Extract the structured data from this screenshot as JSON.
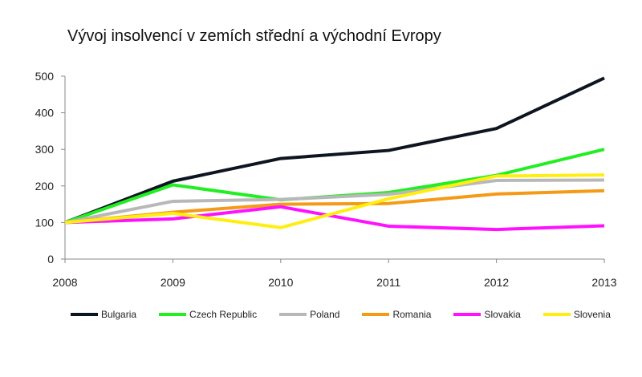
{
  "chart_data": {
    "type": "line",
    "title": "Vývoj insolvencí v zemích střední a východní Evropy",
    "xlabel": "",
    "ylabel": "",
    "x": [
      "2008",
      "2009",
      "2010",
      "2011",
      "2012",
      "2013"
    ],
    "ylim": [
      0,
      500
    ],
    "yticks": [
      "0",
      "100",
      "200",
      "300",
      "400",
      "500"
    ],
    "grid": false,
    "legend_position": "bottom",
    "series": [
      {
        "name": "Bulgaria",
        "color": "#0d1521",
        "values": [
          100,
          213,
          275,
          297,
          357,
          495
        ]
      },
      {
        "name": "Czech Republic",
        "color": "#22ee22",
        "values": [
          100,
          203,
          162,
          182,
          229,
          300
        ]
      },
      {
        "name": "Poland",
        "color": "#b8b8b8",
        "values": [
          100,
          158,
          163,
          177,
          215,
          216
        ]
      },
      {
        "name": "Romania",
        "color": "#f49a17",
        "values": [
          100,
          128,
          150,
          152,
          178,
          187
        ]
      },
      {
        "name": "Slovakia",
        "color": "#ff11ff",
        "values": [
          100,
          110,
          143,
          90,
          81,
          91
        ]
      },
      {
        "name": "Slovenia",
        "color": "#ffee11",
        "values": [
          100,
          125,
          86,
          165,
          227,
          230
        ]
      }
    ]
  }
}
